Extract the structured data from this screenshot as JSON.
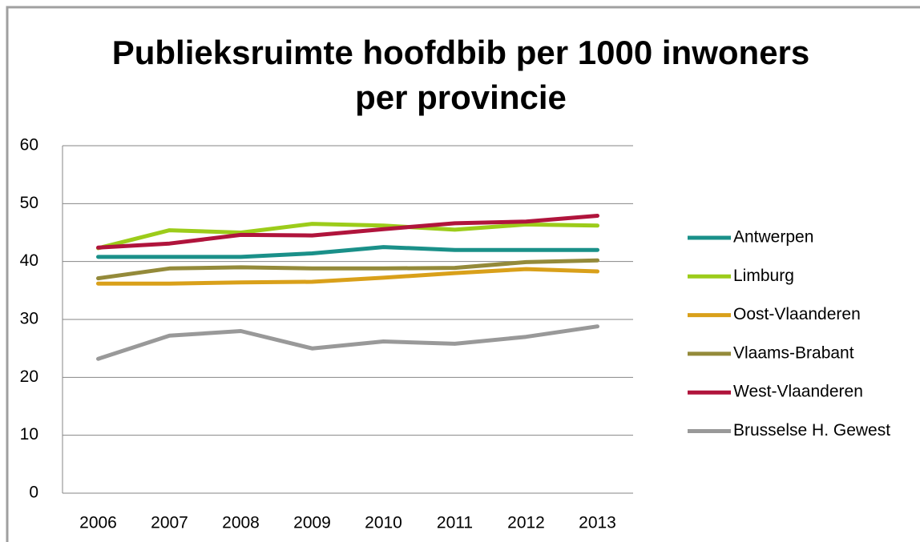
{
  "chart_data": {
    "type": "line",
    "title": "Publieksruimte hoofdbib per 1000 inwoners per provincie",
    "categories": [
      "2006",
      "2007",
      "2008",
      "2009",
      "2010",
      "2011",
      "2012",
      "2013"
    ],
    "series": [
      {
        "name": "Antwerpen",
        "color": "#1a9089",
        "values": [
          40.8,
          40.8,
          40.8,
          41.4,
          42.5,
          42,
          42,
          42
        ]
      },
      {
        "name": "Limburg",
        "color": "#9ccc1a",
        "values": [
          42.3,
          45.4,
          45,
          46.5,
          46.2,
          45.5,
          46.4,
          46.2
        ]
      },
      {
        "name": "Oost-Vlaanderen",
        "color": "#d9a01a",
        "values": [
          36.2,
          36.2,
          36.4,
          36.5,
          37.2,
          38,
          38.7,
          38.3
        ]
      },
      {
        "name": "Vlaams-Brabant",
        "color": "#948a3a",
        "values": [
          37.1,
          38.8,
          39,
          38.8,
          38.8,
          38.9,
          39.9,
          40.2
        ]
      },
      {
        "name": "West-Vlaanderen",
        "color": "#b0143c",
        "values": [
          42.4,
          43.1,
          44.6,
          44.5,
          45.6,
          46.6,
          46.9,
          47.9
        ]
      },
      {
        "name": "Brusselse H. Gewest",
        "color": "#999999",
        "values": [
          23.2,
          27.2,
          28,
          25,
          26.2,
          25.8,
          27,
          28.8
        ]
      }
    ],
    "ylim": [
      0,
      60
    ],
    "yticks": [
      0,
      10,
      20,
      30,
      40,
      50,
      60
    ],
    "grid": true,
    "legend": "right"
  }
}
